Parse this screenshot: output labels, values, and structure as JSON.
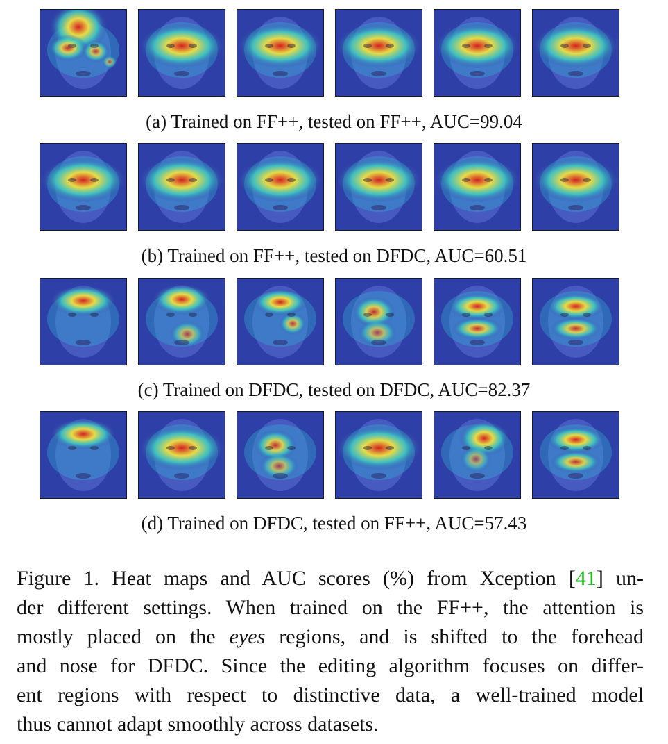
{
  "figure": {
    "rows": [
      {
        "label": "(a) Trained on FF++, tested on FF++, AUC=99.04",
        "tiles": [
          {
            "hot": "forehead-eyes"
          },
          {
            "hot": "eyes"
          },
          {
            "hot": "eyes"
          },
          {
            "hot": "eyes"
          },
          {
            "hot": "eyes"
          },
          {
            "hot": "eyes"
          }
        ]
      },
      {
        "label": "(b) Trained on FF++, tested on DFDC, AUC=60.51",
        "tiles": [
          {
            "hot": "eyes"
          },
          {
            "hot": "eyes"
          },
          {
            "hot": "eyes"
          },
          {
            "hot": "eyes"
          },
          {
            "hot": "eyes"
          },
          {
            "hot": "eyes"
          }
        ]
      },
      {
        "label": "(c) Trained on DFDC, tested on DFDC, AUC=82.37",
        "tiles": [
          {
            "hot": "forehead"
          },
          {
            "hot": "forehead-cheek"
          },
          {
            "hot": "forehead-nose"
          },
          {
            "hot": "nose"
          },
          {
            "hot": "eyes-mouth"
          },
          {
            "hot": "eyes-mouth"
          }
        ]
      },
      {
        "label": "(d) Trained on DFDC, tested on FF++, AUC=57.43",
        "tiles": [
          {
            "hot": "forehead"
          },
          {
            "hot": "eyes"
          },
          {
            "hot": "nose"
          },
          {
            "hot": "eyes"
          },
          {
            "hot": "eye-right"
          },
          {
            "hot": "eyes-mouth"
          }
        ]
      }
    ]
  },
  "caption": {
    "lines": [
      [
        "Figure 1. Heat maps and AUC scores (%) from Xception [",
        "41",
        "] un-"
      ],
      [
        "der different settings. When trained on the FF++, the attention is"
      ],
      [
        "mostly placed on the ",
        "eyes",
        " regions, and is shifted to the forehead"
      ],
      [
        "and nose for DFDC. Since the editing algorithm focuses on differ-"
      ],
      [
        "ent regions with respect to distinctive data, a well-trained model"
      ],
      [
        "thus cannot adapt smoothly across datasets."
      ]
    ],
    "ref_color": "#22bb22"
  },
  "colors": {
    "cool": "#2f3fa8",
    "warm_mid": "#3fd0c0",
    "warm_high": "#f0e040",
    "hot": "#d42020"
  }
}
